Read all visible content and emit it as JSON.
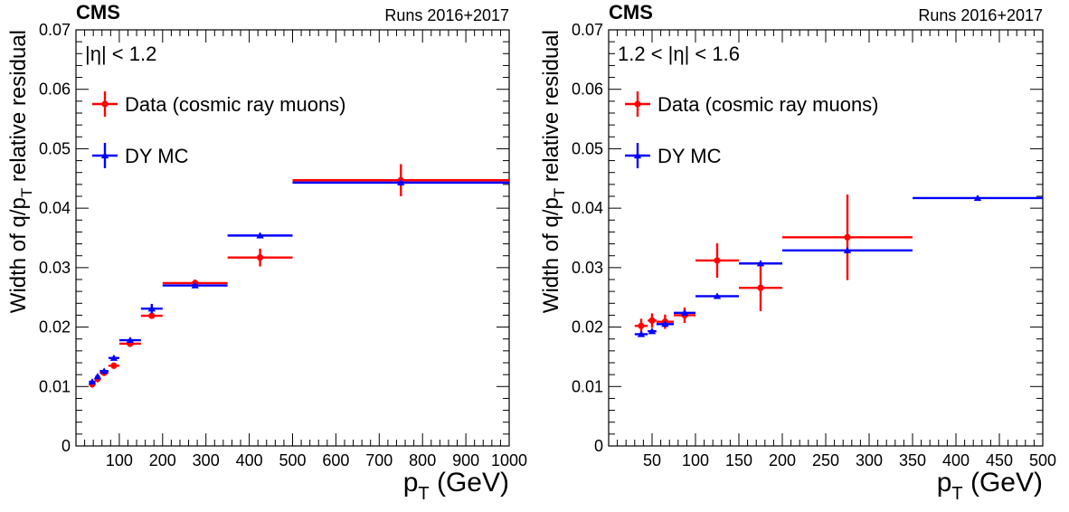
{
  "colors": {
    "data": "#ff0000",
    "mc": "#0000ff",
    "frame": "#000000"
  },
  "chart_data": [
    {
      "type": "scatter",
      "experiment": "CMS",
      "runs": "Runs 2016+2017",
      "region": "|η| < 1.2",
      "xlabel": "p_T (GeV)",
      "xlabel_main": "p",
      "xlabel_sub": "T",
      "xlabel_unit": " (GeV)",
      "ylabel": "Width of q/p_T relative residual",
      "ylabel_pre": "Width of q/p",
      "ylabel_sub": "T",
      "ylabel_post": " relative residual",
      "xlim": [
        0,
        1000
      ],
      "ylim": [
        0,
        0.07
      ],
      "xticks": [
        100,
        200,
        300,
        400,
        500,
        600,
        700,
        800,
        900,
        1000
      ],
      "yticks": [
        0,
        0.01,
        0.02,
        0.03,
        0.04,
        0.05,
        0.06,
        0.07
      ],
      "ytick_labels": [
        "0",
        "0.01",
        "0.02",
        "0.03",
        "0.04",
        "0.05",
        "0.06",
        "0.07"
      ],
      "legend": "top-left",
      "series": [
        {
          "name": "Data (cosmic ray muons)",
          "marker": "circle",
          "color": "#ff0000",
          "points": [
            {
              "x": 37.5,
              "xlo": 30,
              "xhi": 45,
              "y": 0.0104,
              "yerr": 0.0006
            },
            {
              "x": 50,
              "xlo": 45,
              "xhi": 55,
              "y": 0.0113,
              "yerr": 0.0006
            },
            {
              "x": 65,
              "xlo": 55,
              "xhi": 75,
              "y": 0.0123,
              "yerr": 0.0005
            },
            {
              "x": 87.5,
              "xlo": 75,
              "xhi": 100,
              "y": 0.0135,
              "yerr": 0.0005
            },
            {
              "x": 125,
              "xlo": 100,
              "xhi": 150,
              "y": 0.0172,
              "yerr": 0.0005
            },
            {
              "x": 175,
              "xlo": 150,
              "xhi": 200,
              "y": 0.0219,
              "yerr": 0.0005
            },
            {
              "x": 275,
              "xlo": 200,
              "xhi": 350,
              "y": 0.0274,
              "yerr": 0.0006
            },
            {
              "x": 425,
              "xlo": 350,
              "xhi": 500,
              "y": 0.0317,
              "yerr": 0.0015
            },
            {
              "x": 750,
              "xlo": 500,
              "xhi": 1000,
              "y": 0.0447,
              "yerr": 0.0027
            }
          ]
        },
        {
          "name": "DY MC",
          "marker": "triangle",
          "color": "#0000ff",
          "points": [
            {
              "x": 37.5,
              "xlo": 30,
              "xhi": 45,
              "y": 0.0108,
              "yerr": 0.0003
            },
            {
              "x": 50,
              "xlo": 45,
              "xhi": 55,
              "y": 0.0117,
              "yerr": 0.0003
            },
            {
              "x": 65,
              "xlo": 55,
              "xhi": 75,
              "y": 0.0126,
              "yerr": 0.0003
            },
            {
              "x": 87.5,
              "xlo": 75,
              "xhi": 100,
              "y": 0.0148,
              "yerr": 0.0003
            },
            {
              "x": 125,
              "xlo": 100,
              "xhi": 150,
              "y": 0.0178,
              "yerr": 0.0002
            },
            {
              "x": 175,
              "xlo": 150,
              "xhi": 200,
              "y": 0.0231,
              "yerr": 0.0008
            },
            {
              "x": 275,
              "xlo": 200,
              "xhi": 350,
              "y": 0.027,
              "yerr": 0.0002
            },
            {
              "x": 425,
              "xlo": 350,
              "xhi": 500,
              "y": 0.0354,
              "yerr": 0.0002
            },
            {
              "x": 750,
              "xlo": 500,
              "xhi": 1000,
              "y": 0.0443,
              "yerr": 0.0002
            }
          ]
        }
      ]
    },
    {
      "type": "scatter",
      "experiment": "CMS",
      "runs": "Runs 2016+2017",
      "region": "1.2 < |η| < 1.6",
      "xlabel": "p_T (GeV)",
      "xlabel_main": "p",
      "xlabel_sub": "T",
      "xlabel_unit": " (GeV)",
      "ylabel": "Width of q/p_T relative residual",
      "ylabel_pre": "Width of q/p",
      "ylabel_sub": "T",
      "ylabel_post": " relative residual",
      "xlim": [
        0,
        500
      ],
      "ylim": [
        0,
        0.07
      ],
      "xticks": [
        50,
        100,
        150,
        200,
        250,
        300,
        350,
        400,
        450,
        500
      ],
      "yticks": [
        0,
        0.01,
        0.02,
        0.03,
        0.04,
        0.05,
        0.06,
        0.07
      ],
      "ytick_labels": [
        "0",
        "0.01",
        "0.02",
        "0.03",
        "0.04",
        "0.05",
        "0.06",
        "0.07"
      ],
      "legend": "top-left",
      "series": [
        {
          "name": "Data (cosmic ray muons)",
          "marker": "circle",
          "color": "#ff0000",
          "points": [
            {
              "x": 37.5,
              "xlo": 30,
              "xhi": 45,
              "y": 0.0202,
              "yerr": 0.0012
            },
            {
              "x": 50,
              "xlo": 45,
              "xhi": 55,
              "y": 0.0211,
              "yerr": 0.0012
            },
            {
              "x": 65,
              "xlo": 55,
              "xhi": 75,
              "y": 0.0209,
              "yerr": 0.0012
            },
            {
              "x": 87.5,
              "xlo": 75,
              "xhi": 100,
              "y": 0.022,
              "yerr": 0.0013
            },
            {
              "x": 125,
              "xlo": 100,
              "xhi": 150,
              "y": 0.0312,
              "yerr": 0.0029
            },
            {
              "x": 175,
              "xlo": 150,
              "xhi": 200,
              "y": 0.0266,
              "yerr": 0.0039
            },
            {
              "x": 275,
              "xlo": 200,
              "xhi": 350,
              "y": 0.0351,
              "yerr": 0.0072
            }
          ]
        },
        {
          "name": "DY MC",
          "marker": "triangle",
          "color": "#0000ff",
          "points": [
            {
              "x": 37.5,
              "xlo": 30,
              "xhi": 45,
              "y": 0.0188,
              "yerr": 0.0003
            },
            {
              "x": 50,
              "xlo": 45,
              "xhi": 55,
              "y": 0.0193,
              "yerr": 0.0003
            },
            {
              "x": 65,
              "xlo": 55,
              "xhi": 75,
              "y": 0.0205,
              "yerr": 0.0003
            },
            {
              "x": 87.5,
              "xlo": 75,
              "xhi": 100,
              "y": 0.0224,
              "yerr": 0.0003
            },
            {
              "x": 125,
              "xlo": 100,
              "xhi": 150,
              "y": 0.0252,
              "yerr": 0.0002
            },
            {
              "x": 175,
              "xlo": 150,
              "xhi": 200,
              "y": 0.0307,
              "yerr": 0.0002
            },
            {
              "x": 275,
              "xlo": 200,
              "xhi": 350,
              "y": 0.0329,
              "yerr": 0.0002
            },
            {
              "x": 425,
              "xlo": 350,
              "xhi": 500,
              "y": 0.0417,
              "yerr": 0.0002
            }
          ]
        }
      ]
    }
  ]
}
